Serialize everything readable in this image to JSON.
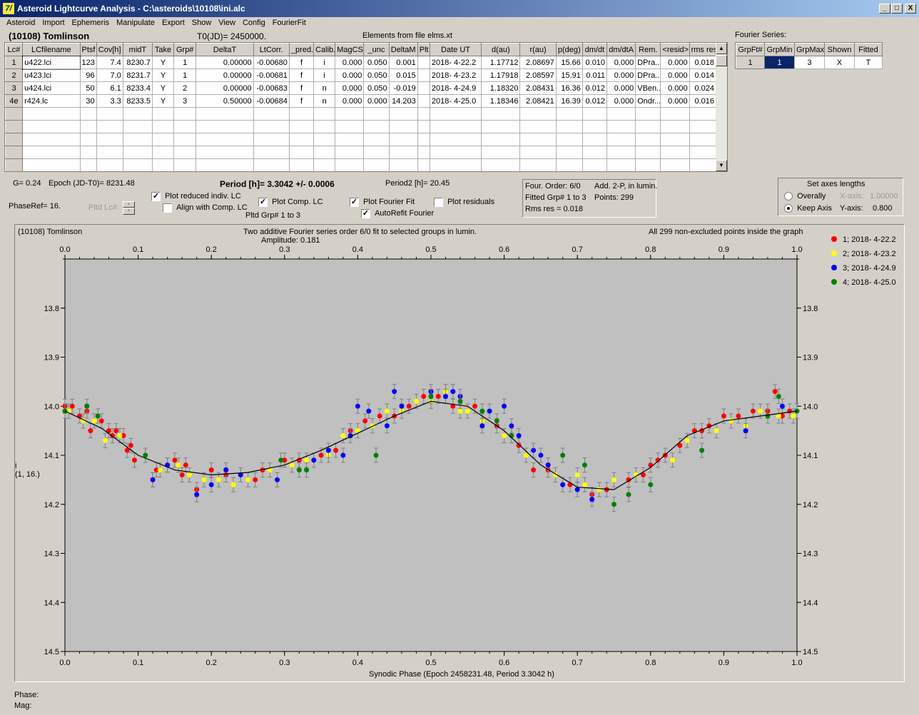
{
  "window": {
    "title": "Asteroid Lightcurve Analysis - C:\\asteroids\\10108\\ini.alc",
    "icon_label": "7/",
    "minimize": "_",
    "maximize": "□",
    "close": "X"
  },
  "menu": [
    "Asteroid",
    "Import",
    "Ephemeris",
    "Manipulate",
    "Export",
    "Show",
    "View",
    "Config",
    "FourierFit"
  ],
  "header": {
    "asteroid": "(10108) Tomlinson",
    "t0": "T0(JD)= 2450000.",
    "elements": "Elements from file elms.xt"
  },
  "lc_table": {
    "columns": [
      "Lc#",
      "LCfilename",
      "Ptsf",
      "Cov[h]",
      "midT",
      "Take",
      "Grp#",
      "DeltaT",
      "LtCorr.",
      "_pred.",
      "Calib.",
      "MagCS",
      "_unc",
      "DeltaM",
      "Plt",
      "Date UT",
      "d(au)",
      "r(au)",
      "p(deg)",
      "dm/dt",
      "dm/dtA",
      "Rem.",
      "<resid>",
      "rms res"
    ],
    "rows": [
      [
        "1",
        "u422.lci",
        "123",
        "7.4",
        "8230.7",
        "Y",
        "1",
        "0.00000",
        "-0.00680",
        "f",
        "i",
        "0.000",
        "0.050",
        "0.001",
        "",
        "2018- 4-22.2",
        "1.17712",
        "2.08697",
        "15.66",
        "0.010",
        "0.000",
        "DPra...",
        "0.000",
        "0.018"
      ],
      [
        "2",
        "u423.lci",
        "96",
        "7.0",
        "8231.7",
        "Y",
        "1",
        "0.00000",
        "-0.00681",
        "f",
        "i",
        "0.000",
        "0.050",
        "0.015",
        "",
        "2018- 4-23.2",
        "1.17918",
        "2.08597",
        "15.91",
        "0.011",
        "0.000",
        "DPra...",
        "0.000",
        "0.014"
      ],
      [
        "3",
        "u424.lci",
        "50",
        "6.1",
        "8233.4",
        "Y",
        "2",
        "0.00000",
        "-0.00683",
        "f",
        "n",
        "0.000",
        "0.050",
        "-0.019",
        "",
        "2018- 4-24.9",
        "1.18320",
        "2.08431",
        "16.36",
        "0.012",
        "0.000",
        "VBen...",
        "0.000",
        "0.024"
      ],
      [
        "4e",
        "r424.lc",
        "30",
        "3.3",
        "8233.5",
        "Y",
        "3",
        "0.50000",
        "-0.00684",
        "f",
        "n",
        "0.000",
        "0.000",
        "14.203",
        "",
        "2018- 4-25.0",
        "1.18346",
        "2.08421",
        "16.39",
        "0.012",
        "0.000",
        "Ondr...",
        "0.000",
        "0.016"
      ]
    ]
  },
  "fourier_series": {
    "label": "Fourier Series:",
    "columns": [
      "GrpFt#",
      "GrpMin",
      "GrpMax",
      "Shown",
      "Fitted"
    ],
    "row": [
      "1",
      "1",
      "3",
      "X",
      "T"
    ]
  },
  "info": {
    "g": "G= 0.24",
    "epoch": "Epoch (JD-T0)= 8231.48",
    "period": "Period [h]= 3.3042 +/- 0.0006",
    "period2": "Period2 [h]= 20.45",
    "phase_ref": "PhaseRef= 16.",
    "pltd_lc": "Pltd Lc#:",
    "pltd_grp": "Pltd Grp#  1   to   3"
  },
  "options": {
    "plot_reduced": {
      "label": "Plot reduced indiv. LC",
      "checked": true
    },
    "align_comp": {
      "label": "Align with Comp. LC",
      "checked": false
    },
    "plot_comp": {
      "label": "Plot Comp. LC",
      "checked": true
    },
    "plot_fourier": {
      "label": "Plot Fourier Fit",
      "checked": true
    },
    "autorefit": {
      "label": "AutoRefit Fourier",
      "checked": true
    },
    "plot_residuals": {
      "label": "Plot residuals",
      "checked": false
    }
  },
  "fit_info": {
    "order": "Four. Order:  6/0",
    "add": "Add. 2-P, in lumin.",
    "fitted": "Fitted Grp# 1 to 3",
    "points": "Points: 299",
    "rms": "Rms res      = 0.018"
  },
  "axes_box": {
    "title": "Set axes lengths",
    "overally": "Overally",
    "keep_axis": "Keep Axis",
    "xaxis_label": "X-axis:",
    "xaxis_value": "1.00000",
    "yaxis_label": "Y-axis:",
    "yaxis_value": "0.800",
    "selected": "keep_axis"
  },
  "chart_data": {
    "type": "scatter",
    "title_left": "(10108) Tomlinson",
    "title_center": "Two additive Fourier series order 6/0 fit to selected groups in lumin.",
    "amplitude": "Amplitude: 0.181",
    "title_right": "All 299 non-excluded points inside the graph",
    "xlabel": "Synodic Phase (Epoch 2458231.48, Period 3.3042 h)",
    "ylabel_1": "i",
    "ylabel_2": "(1, 16.)",
    "xlim": [
      0.0,
      1.0
    ],
    "ylim": [
      14.5,
      13.7
    ],
    "x_ticks": [
      "0.0",
      "0.1",
      "0.2",
      "0.3",
      "0.4",
      "0.5",
      "0.6",
      "0.7",
      "0.8",
      "0.9",
      "1.0"
    ],
    "y_ticks": [
      "13.8",
      "13.9",
      "14.0",
      "14.1",
      "14.2",
      "14.3",
      "14.4",
      "14.5"
    ],
    "legend": [
      {
        "label": "1; 2018- 4-22.2",
        "color": "#ff0000"
      },
      {
        "label": "2; 2018- 4-23.2",
        "color": "#ffff00"
      },
      {
        "label": "3; 2018- 4-24.9",
        "color": "#0000ff"
      },
      {
        "label": "4; 2018- 4-25.0",
        "color": "#008000"
      }
    ],
    "fit_curve": {
      "x": [
        0.0,
        0.05,
        0.1,
        0.15,
        0.2,
        0.25,
        0.3,
        0.35,
        0.4,
        0.45,
        0.5,
        0.55,
        0.6,
        0.65,
        0.7,
        0.75,
        0.8,
        0.85,
        0.9,
        0.95,
        1.0
      ],
      "y": [
        14.01,
        14.045,
        14.1,
        14.13,
        14.14,
        14.135,
        14.12,
        14.09,
        14.055,
        14.02,
        13.99,
        14.0,
        14.05,
        14.12,
        14.165,
        14.17,
        14.125,
        14.06,
        14.03,
        14.02,
        14.01
      ]
    },
    "series": [
      {
        "name": "1; 2018- 4-22.2",
        "color": "#ff0000",
        "x": [
          0.0,
          0.01,
          0.02,
          0.03,
          0.035,
          0.05,
          0.06,
          0.065,
          0.07,
          0.08,
          0.085,
          0.09,
          0.095,
          0.12,
          0.125,
          0.14,
          0.15,
          0.16,
          0.165,
          0.18,
          0.2,
          0.22,
          0.24,
          0.26,
          0.27,
          0.3,
          0.32,
          0.35,
          0.37,
          0.39,
          0.41,
          0.43,
          0.45,
          0.47,
          0.49,
          0.51,
          0.53,
          0.56,
          0.59,
          0.62,
          0.64,
          0.66,
          0.69,
          0.72,
          0.74,
          0.77,
          0.79,
          0.8,
          0.81,
          0.82,
          0.84,
          0.86,
          0.87,
          0.88,
          0.9,
          0.92,
          0.94,
          0.96,
          0.97,
          0.98,
          0.99
        ],
        "y": [
          14.0,
          14.0,
          14.02,
          14.01,
          14.05,
          14.03,
          14.05,
          14.06,
          14.05,
          14.06,
          14.09,
          14.08,
          14.11,
          14.15,
          14.13,
          14.12,
          14.11,
          14.14,
          14.12,
          14.17,
          14.13,
          14.14,
          14.14,
          14.15,
          14.13,
          14.11,
          14.11,
          14.1,
          14.09,
          14.05,
          14.03,
          14.02,
          14.02,
          14.0,
          13.98,
          13.98,
          14.0,
          14.0,
          14.04,
          14.08,
          14.13,
          14.13,
          14.16,
          14.18,
          14.17,
          14.15,
          14.14,
          14.12,
          14.11,
          14.1,
          14.08,
          14.05,
          14.05,
          14.04,
          14.02,
          14.02,
          14.01,
          14.01,
          13.97,
          14.02,
          14.01
        ]
      },
      {
        "name": "2; 2018- 4-23.2",
        "color": "#ffff00",
        "x": [
          0.005,
          0.025,
          0.04,
          0.055,
          0.075,
          0.11,
          0.13,
          0.155,
          0.17,
          0.19,
          0.21,
          0.23,
          0.25,
          0.28,
          0.31,
          0.33,
          0.36,
          0.38,
          0.4,
          0.42,
          0.44,
          0.46,
          0.48,
          0.5,
          0.52,
          0.54,
          0.55,
          0.57,
          0.6,
          0.63,
          0.67,
          0.7,
          0.71,
          0.73,
          0.75,
          0.78,
          0.83,
          0.85,
          0.89,
          0.91,
          0.93,
          0.95,
          0.975,
          0.995
        ],
        "y": [
          14.01,
          14.03,
          14.03,
          14.07,
          14.06,
          14.1,
          14.13,
          14.12,
          14.14,
          14.15,
          14.15,
          14.16,
          14.15,
          14.13,
          14.12,
          14.11,
          14.1,
          14.06,
          14.05,
          14.04,
          14.01,
          14.01,
          13.99,
          13.99,
          13.97,
          14.01,
          14.01,
          14.03,
          14.06,
          14.1,
          14.14,
          14.14,
          14.16,
          14.17,
          14.15,
          14.14,
          14.11,
          14.07,
          14.05,
          14.03,
          14.04,
          14.01,
          14.02,
          14.02
        ]
      },
      {
        "name": "3; 2018- 4-24.9",
        "color": "#0000ff",
        "x": [
          0.12,
          0.14,
          0.18,
          0.2,
          0.22,
          0.24,
          0.29,
          0.34,
          0.36,
          0.38,
          0.39,
          0.4,
          0.415,
          0.44,
          0.45,
          0.46,
          0.5,
          0.52,
          0.53,
          0.54,
          0.57,
          0.58,
          0.6,
          0.61,
          0.62,
          0.64,
          0.65,
          0.66,
          0.68,
          0.7,
          0.72,
          0.93,
          0.98
        ],
        "y": [
          14.15,
          14.12,
          14.18,
          14.16,
          14.13,
          14.14,
          14.15,
          14.11,
          14.09,
          14.1,
          14.06,
          14.0,
          14.01,
          14.04,
          13.97,
          14.0,
          13.97,
          13.98,
          13.97,
          13.98,
          14.04,
          14.01,
          14.0,
          14.04,
          14.06,
          14.09,
          14.1,
          14.12,
          14.16,
          14.17,
          14.19,
          14.05,
          14.0
        ]
      },
      {
        "name": "4; 2018- 4-25.0",
        "color": "#008000",
        "x": [
          0.0,
          0.03,
          0.045,
          0.11,
          0.295,
          0.32,
          0.33,
          0.425,
          0.5,
          0.54,
          0.57,
          0.59,
          0.61,
          0.68,
          0.71,
          0.75,
          0.77,
          0.8,
          0.87,
          0.96,
          0.975,
          1.0
        ],
        "y": [
          14.01,
          14.0,
          14.02,
          14.1,
          14.11,
          14.13,
          14.13,
          14.1,
          13.98,
          13.99,
          14.01,
          14.03,
          14.06,
          14.1,
          14.12,
          14.2,
          14.18,
          14.16,
          14.09,
          14.02,
          13.98,
          14.01
        ]
      }
    ]
  },
  "status": {
    "phase": "Phase:",
    "mag": "Mag:"
  }
}
